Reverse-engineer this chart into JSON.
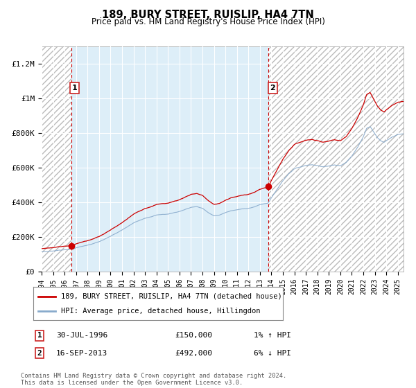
{
  "title": "189, BURY STREET, RUISLIP, HA4 7TN",
  "subtitle": "Price paid vs. HM Land Registry's House Price Index (HPI)",
  "legend_line1": "189, BURY STREET, RUISLIP, HA4 7TN (detached house)",
  "legend_line2": "HPI: Average price, detached house, Hillingdon",
  "annotation1_label": "1",
  "annotation1_date": "30-JUL-1996",
  "annotation1_price": "£150,000",
  "annotation1_hpi": "1% ↑ HPI",
  "annotation1_year": 1996.58,
  "annotation1_value": 150000,
  "annotation2_label": "2",
  "annotation2_date": "16-SEP-2013",
  "annotation2_price": "£492,000",
  "annotation2_hpi": "6% ↓ HPI",
  "annotation2_year": 2013.72,
  "annotation2_value": 492000,
  "footer": "Contains HM Land Registry data © Crown copyright and database right 2024.\nThis data is licensed under the Open Government Licence v3.0.",
  "ylim": [
    0,
    1300000
  ],
  "xlim_start": 1994.0,
  "xlim_end": 2025.5,
  "hatch_left_end": 1996.58,
  "hatch_right_start": 2013.72,
  "background_color": "#ffffff",
  "plot_bg_color": "#ddeef8",
  "line_red_color": "#cc0000",
  "line_blue_color": "#88aacc",
  "vline_color": "#cc0000",
  "grid_color": "#ffffff",
  "hatch_edgecolor": "#bbbbbb"
}
